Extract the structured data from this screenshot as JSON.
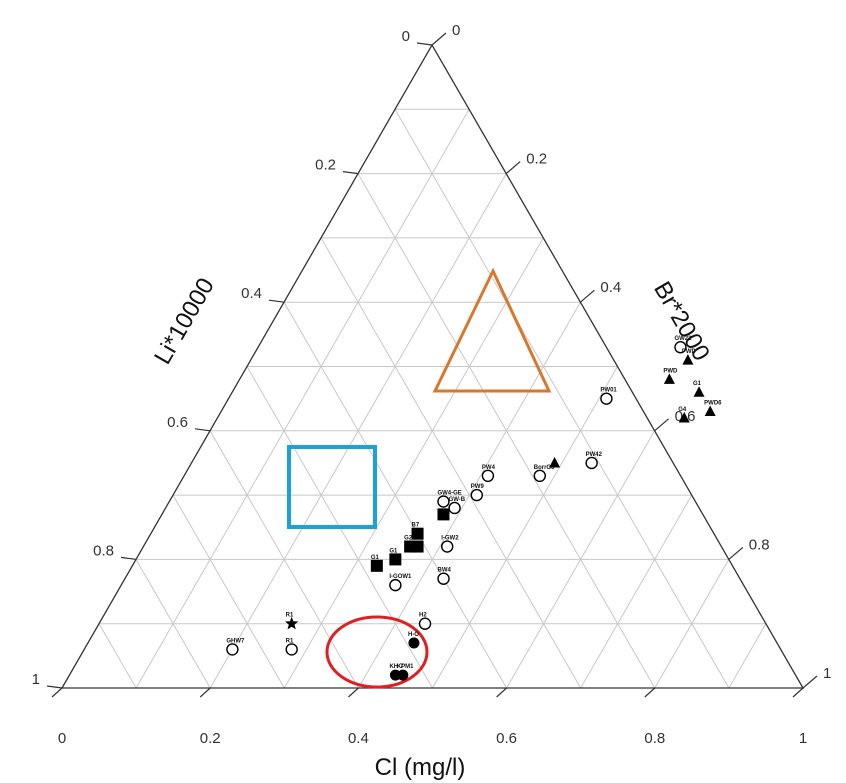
{
  "chart_data": {
    "type": "ternary",
    "axis_labels": {
      "left": "Li*10000",
      "right": "Br*2000",
      "bottom": "Cl (mg/l)"
    },
    "tick_values": [
      0,
      0.2,
      0.4,
      0.6,
      0.8,
      1
    ],
    "tick_labels": {
      "bottom": [
        "0",
        "0.2",
        "0.4",
        "0.6",
        "0.8",
        "1"
      ],
      "left": [
        "0",
        "0.2",
        "0.4",
        "0.6",
        "0.8",
        "1"
      ],
      "right": [
        "1",
        "0.8",
        "0.6",
        "0.4",
        "0.2",
        "0"
      ]
    },
    "grid_step": 0.1,
    "series": [
      {
        "marker": "circle-open",
        "points": [
          {
            "label": "GHW7",
            "cl": 0.2,
            "br": 0.06
          },
          {
            "label": "R1",
            "cl": 0.28,
            "br": 0.06
          },
          {
            "label": "I-GOW1",
            "cl": 0.37,
            "br": 0.16
          },
          {
            "label": "I-GW2",
            "cl": 0.41,
            "br": 0.22
          },
          {
            "label": "BW4",
            "cl": 0.43,
            "br": 0.17
          },
          {
            "label": "H2",
            "cl": 0.44,
            "br": 0.1
          },
          {
            "label": "GW4-GE",
            "cl": 0.37,
            "br": 0.29
          },
          {
            "label": "GW-B",
            "cl": 0.39,
            "br": 0.28
          },
          {
            "label": "PW4",
            "cl": 0.41,
            "br": 0.33
          },
          {
            "label": "PW9",
            "cl": 0.41,
            "br": 0.3
          },
          {
            "label": "BorrG3",
            "cl": 0.48,
            "br": 0.33
          },
          {
            "label": "PW42",
            "cl": 0.54,
            "br": 0.35
          },
          {
            "label": "PW01",
            "cl": 0.51,
            "br": 0.45
          },
          {
            "label": "GW22",
            "cl": 0.57,
            "br": 0.53
          }
        ]
      },
      {
        "marker": "square-filled",
        "points": [
          {
            "label": "G1",
            "cl": 0.33,
            "br": 0.19
          },
          {
            "label": "G1",
            "cl": 0.35,
            "br": 0.2
          },
          {
            "label": "G2",
            "cl": 0.36,
            "br": 0.22
          },
          {
            "label": "B7",
            "cl": 0.36,
            "br": 0.24
          },
          {
            "label": "",
            "cl": 0.38,
            "br": 0.27
          },
          {
            "label": "",
            "cl": 0.37,
            "br": 0.22
          }
        ]
      },
      {
        "marker": "triangle-filled",
        "points": [
          {
            "label": "",
            "cl": 0.49,
            "br": 0.35
          },
          {
            "label": "PWD",
            "cl": 0.58,
            "br": 0.48
          },
          {
            "label": "PWD",
            "cl": 0.59,
            "br": 0.51
          },
          {
            "label": "G1",
            "cl": 0.63,
            "br": 0.46
          },
          {
            "label": "G4",
            "cl": 0.63,
            "br": 0.42
          },
          {
            "label": "PWD6",
            "cl": 0.66,
            "br": 0.43
          }
        ]
      },
      {
        "marker": "circle-filled",
        "points": [
          {
            "label": "H-O",
            "cl": 0.44,
            "br": 0.07
          },
          {
            "label": "KH-7",
            "cl": 0.44,
            "br": 0.02
          },
          {
            "label": "KPM1",
            "cl": 0.45,
            "br": 0.02
          }
        ]
      },
      {
        "marker": "star-filled",
        "points": [
          {
            "label": "R1",
            "cl": 0.26,
            "br": 0.1
          }
        ]
      }
    ],
    "annotations": [
      {
        "shape": "rectangle",
        "color": "#1aa3d8"
      },
      {
        "shape": "triangle",
        "color": "#d9782d"
      },
      {
        "shape": "ellipse",
        "color": "#e02020"
      }
    ]
  }
}
